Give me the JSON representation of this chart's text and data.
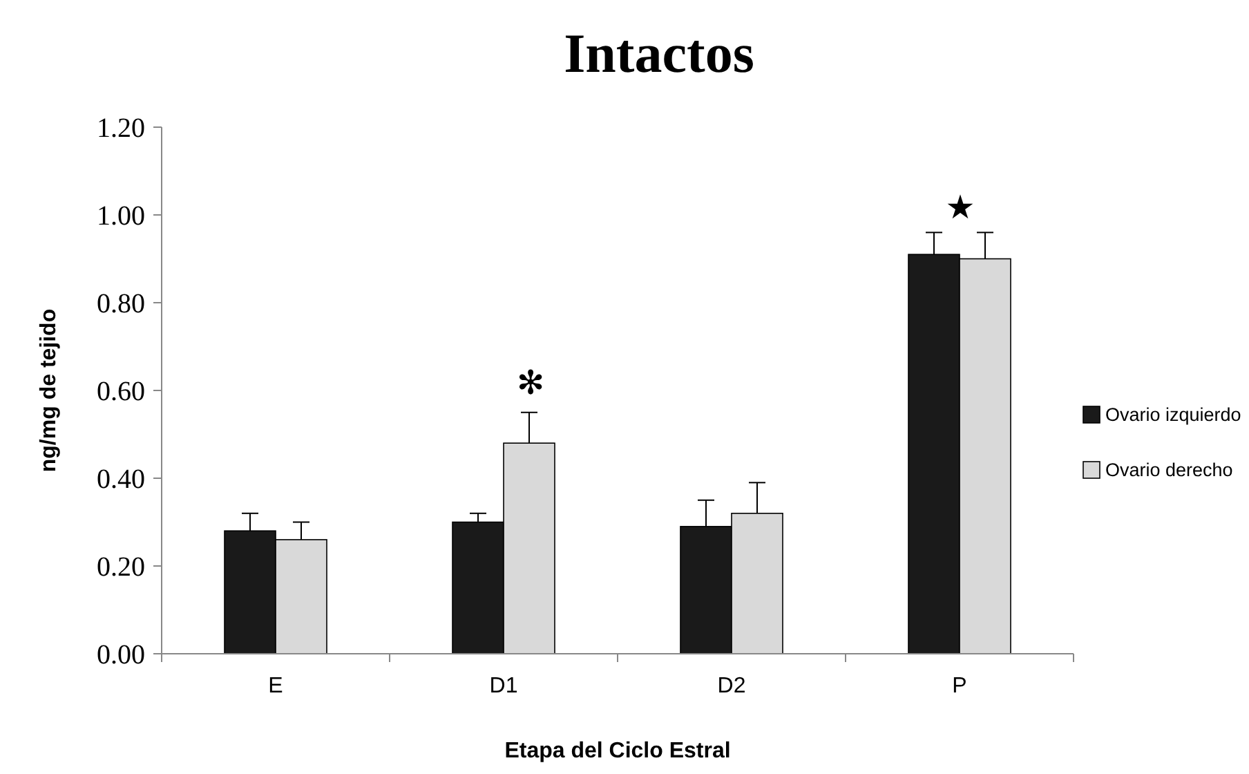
{
  "chart_data": {
    "type": "bar",
    "title": "Intactos",
    "xlabel": "Etapa del Ciclo Estral",
    "ylabel": "ng/mg de tejido",
    "categories": [
      "E",
      "D1",
      "D2",
      "P"
    ],
    "series": [
      {
        "name": "Ovario izquierdo",
        "color": "#1a1a1a",
        "values": [
          0.28,
          0.3,
          0.29,
          0.91
        ],
        "errors": [
          [
            0.28,
            0.32
          ],
          [
            0.3,
            0.32
          ],
          [
            0.29,
            0.35
          ],
          [
            0.91,
            0.96
          ]
        ]
      },
      {
        "name": "Ovario derecho",
        "color": "#d9d9d9",
        "values": [
          0.26,
          0.48,
          0.32,
          0.9
        ],
        "errors": [
          [
            0.26,
            0.3
          ],
          [
            0.48,
            0.55
          ],
          [
            0.32,
            0.39
          ],
          [
            0.9,
            0.96
          ]
        ]
      }
    ],
    "ylim": [
      0,
      1.2
    ],
    "yticks": [
      {
        "value": 0,
        "label": "0.00"
      },
      {
        "value": 0.2,
        "label": "0.20"
      },
      {
        "value": 0.4,
        "label": "0.40"
      },
      {
        "value": 0.6,
        "label": "0.60"
      },
      {
        "value": 0.8,
        "label": "0.80"
      },
      {
        "value": 1,
        "label": "1.00"
      },
      {
        "value": 1.2,
        "label": "1.20"
      }
    ],
    "grid": false,
    "legend": "right",
    "annotations": [
      "✻",
      "★"
    ]
  }
}
